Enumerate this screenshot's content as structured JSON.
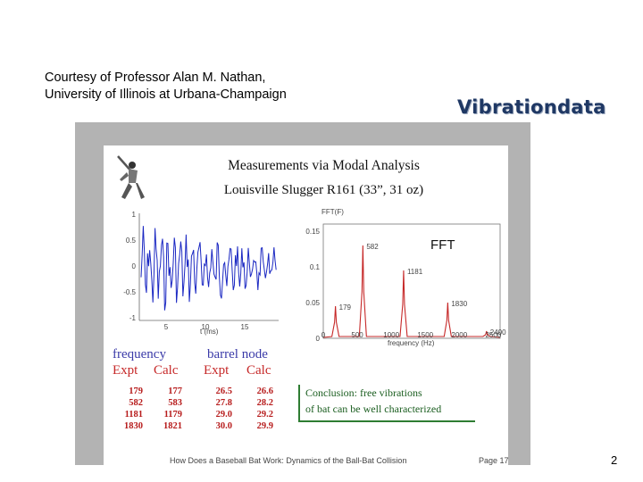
{
  "courtesy": {
    "line1": "Courtesy of Professor Alan M. Nathan,",
    "line2": "University of Illinois at Urbana-Champaign"
  },
  "brand": "Vibrationdata",
  "slide": {
    "title": "Measurements via Modal Analysis",
    "subtitle": "Louisville Slugger R161 (33”, 31 oz)",
    "time_plot": {
      "y_ticks": [
        "1",
        "0.5",
        "0",
        "-0.5",
        "-1"
      ],
      "x_ticks": [
        "5",
        "10",
        "15"
      ],
      "x_label": "t (ms)"
    },
    "fft_plot": {
      "y_label": "FFT(F)",
      "y_ticks": [
        "0.15",
        "0.1",
        "0.05",
        "0"
      ],
      "x_ticks": [
        "0",
        "500",
        "1000",
        "1500",
        "2000",
        "2500"
      ],
      "x_label": "frequency (Hz)",
      "overlay": "FFT",
      "peaks": [
        {
          "freq": 179,
          "amp": 0.045,
          "label": "179"
        },
        {
          "freq": 582,
          "amp": 0.13,
          "label": "582"
        },
        {
          "freq": 1181,
          "amp": 0.095,
          "label": "1181"
        },
        {
          "freq": 1830,
          "amp": 0.05,
          "label": "1830"
        },
        {
          "freq": 2400,
          "amp": 0.01,
          "label": "2400"
        }
      ]
    },
    "table": {
      "h_frequency": "frequency",
      "h_barrel": "barrel node",
      "sub": [
        "Expt",
        "Calc",
        "Expt",
        "Calc"
      ],
      "rows": [
        [
          "179",
          "177",
          "26.5",
          "26.6"
        ],
        [
          "582",
          "583",
          "27.8",
          "28.2"
        ],
        [
          "1181",
          "1179",
          "29.0",
          "29.2"
        ],
        [
          "1830",
          "1821",
          "30.0",
          "29.9"
        ]
      ]
    },
    "conclusion": {
      "line1": "Conclusion: free vibrations",
      "line2": "of bat can be well characterized"
    },
    "footer": "How Does a Baseball Bat Work: Dynamics of the Ball-Bat Collision",
    "page_label": "Page 17"
  },
  "page_number": "2"
}
